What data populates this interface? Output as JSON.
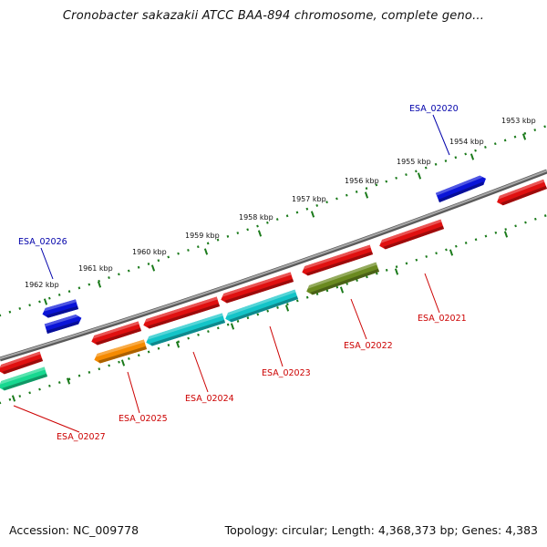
{
  "title": "Cronobacter sakazakii ATCC BAA-894 chromosome, complete geno...",
  "footer": {
    "accession": "Accession: NC_009778",
    "summary": "Topology: circular; Length: 4,368,373 bp; Genes: 4,383"
  },
  "colors": {
    "red": "#e01010",
    "blue": "#0a14d8",
    "cyan": "#14c4c8",
    "orange": "#f58a00",
    "olive": "#6a8a20",
    "green": "#18d890",
    "label_red": "#cc0000",
    "label_blue": "#0000aa",
    "tick": "#1a7a1a",
    "backbone": "#808080"
  },
  "chart_data": {
    "type": "genome-map",
    "topology": "circular",
    "scale_labels": [
      "1953 kbp",
      "1954 kbp",
      "1955 kbp",
      "1956 kbp",
      "1957 kbp",
      "1958 kbp",
      "1959 kbp",
      "1960 kbp",
      "1961 kbp",
      "1962 kbp"
    ],
    "gene_labels": [
      "ESA_02020",
      "ESA_02021",
      "ESA_02022",
      "ESA_02023",
      "ESA_02024",
      "ESA_02025",
      "ESA_02026",
      "ESA_02027"
    ]
  }
}
